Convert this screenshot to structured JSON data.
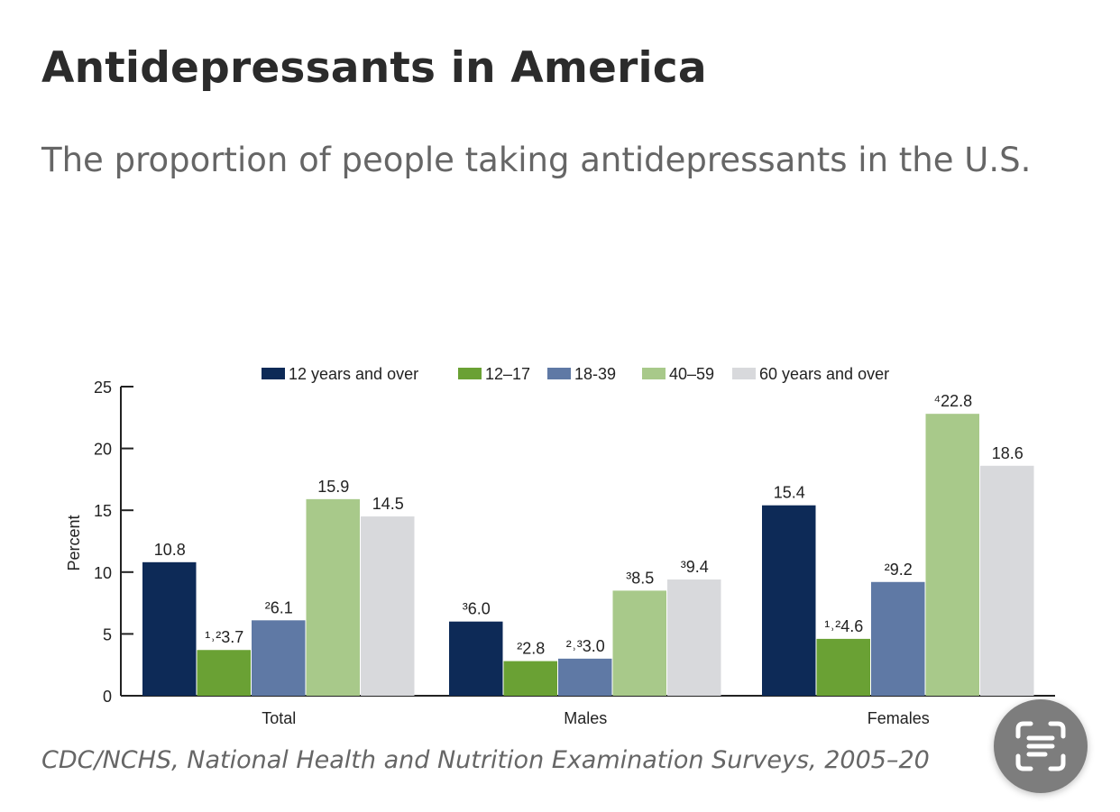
{
  "header": {
    "title": "Antidepressants in America",
    "subtitle": "The proportion of people taking antidepressants in the U.S."
  },
  "source": "CDC/NCHS, National Health and Nutrition Examination Surveys, 2005–20",
  "chart_data": {
    "type": "bar",
    "title": "",
    "xlabel": "",
    "ylabel": "Percent",
    "ylim": [
      0,
      25
    ],
    "yticks": [
      0,
      5,
      10,
      15,
      20,
      25
    ],
    "grid": false,
    "legend_position": "top",
    "categories": [
      "Total",
      "Males",
      "Females"
    ],
    "series": [
      {
        "name": "12 years and over",
        "color": "#0d2a57",
        "values": [
          10.8,
          6.0,
          15.4
        ],
        "labels": [
          "10.8",
          "³6.0",
          "15.4"
        ]
      },
      {
        "name": "12–17",
        "color": "#6aa134",
        "values": [
          3.7,
          2.8,
          4.6
        ],
        "labels": [
          "¹˒²3.7",
          "²2.8",
          "¹˒²4.6"
        ]
      },
      {
        "name": "18-39",
        "color": "#5f79a5",
        "values": [
          6.1,
          3.0,
          9.2
        ],
        "labels": [
          "²6.1",
          "²˒³3.0",
          "²9.2"
        ]
      },
      {
        "name": "40–59",
        "color": "#a8c98a",
        "values": [
          15.9,
          8.5,
          22.8
        ],
        "labels": [
          "15.9",
          "³8.5",
          "⁴22.8"
        ]
      },
      {
        "name": "60 years and over",
        "color": "#d8d9dc",
        "values": [
          14.5,
          9.4,
          18.6
        ],
        "labels": [
          "14.5",
          "³9.4",
          "18.6"
        ]
      }
    ]
  },
  "icons": {
    "scan_button": "text-scan-icon"
  }
}
